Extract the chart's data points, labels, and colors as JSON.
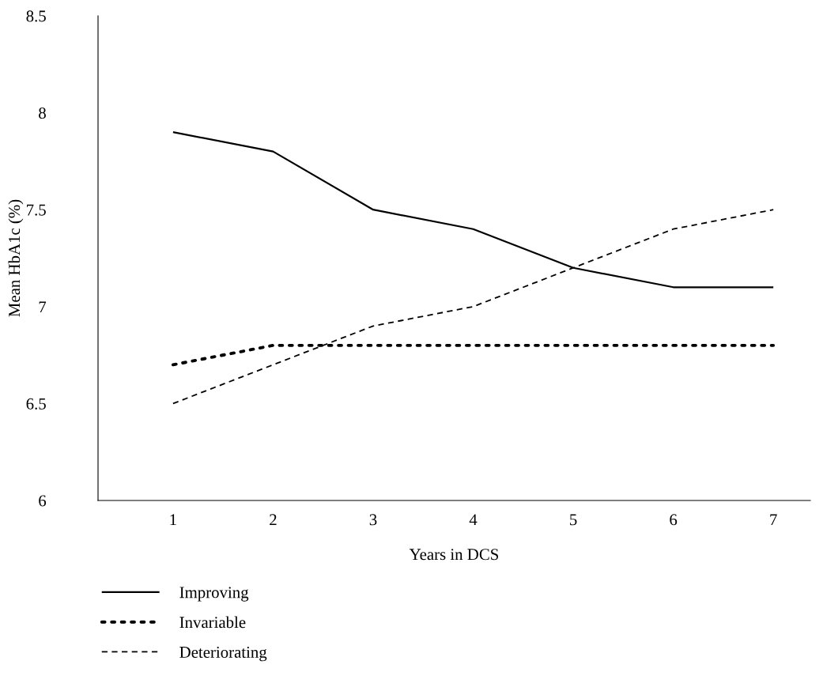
{
  "chart_data": {
    "type": "line",
    "xlabel": "Years in DCS",
    "ylabel": "Mean HbA1c (%)",
    "categories": [
      "1",
      "2",
      "3",
      "4",
      "5",
      "6",
      "7"
    ],
    "ylim": [
      6,
      8.5
    ],
    "yticks": [
      6,
      6.5,
      7,
      7.5,
      8,
      8.5
    ],
    "grid": false,
    "legend": "bottom left",
    "marker": "none",
    "series": [
      {
        "name": "Improving",
        "color": "#000000",
        "line_style": "solid",
        "values": [
          7.9,
          7.8,
          7.5,
          7.4,
          7.2,
          7.1,
          7.1
        ]
      },
      {
        "name": "Invariable",
        "color": "#000000",
        "line_style": "dotted",
        "values": [
          6.7,
          6.8,
          6.8,
          6.8,
          6.8,
          6.8,
          6.8
        ]
      },
      {
        "name": "Deteriorating",
        "color": "#000000",
        "line_style": "dashed",
        "values": [
          6.5,
          6.7,
          6.9,
          7.0,
          7.2,
          7.4,
          7.5
        ]
      }
    ]
  }
}
